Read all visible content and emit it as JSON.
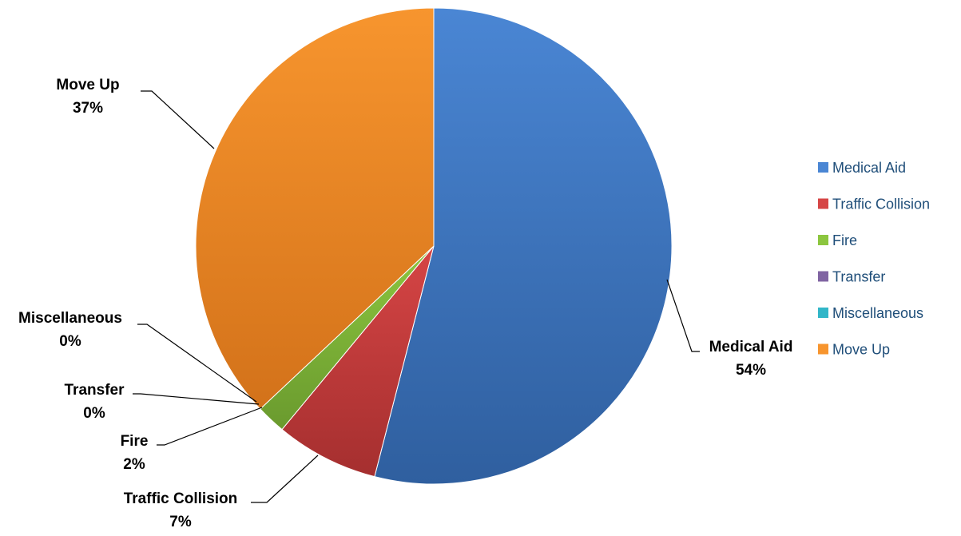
{
  "chart_data": {
    "type": "pie",
    "categories": [
      "Medical Aid",
      "Traffic Collision",
      "Fire",
      "Transfer",
      "Miscellaneous",
      "Move Up"
    ],
    "values": [
      54,
      7,
      2,
      0,
      0,
      37
    ],
    "percent_labels": [
      "54%",
      "7%",
      "2%",
      "0%",
      "0%",
      "37%"
    ],
    "legend_position": "right",
    "colors": {
      "Medical Aid": {
        "light": "#4a86d4",
        "dark": "#2f5f9f"
      },
      "Traffic Collision": {
        "light": "#d64545",
        "dark": "#a52f2f"
      },
      "Fire": {
        "light": "#8cc63f",
        "dark": "#6a9a2e"
      },
      "Transfer": {
        "light": "#8064a2",
        "dark": "#5f4a7a"
      },
      "Miscellaneous": {
        "light": "#31b6c8",
        "dark": "#23899a"
      },
      "Move Up": {
        "light": "#f7952e",
        "dark": "#d3721a"
      }
    }
  }
}
